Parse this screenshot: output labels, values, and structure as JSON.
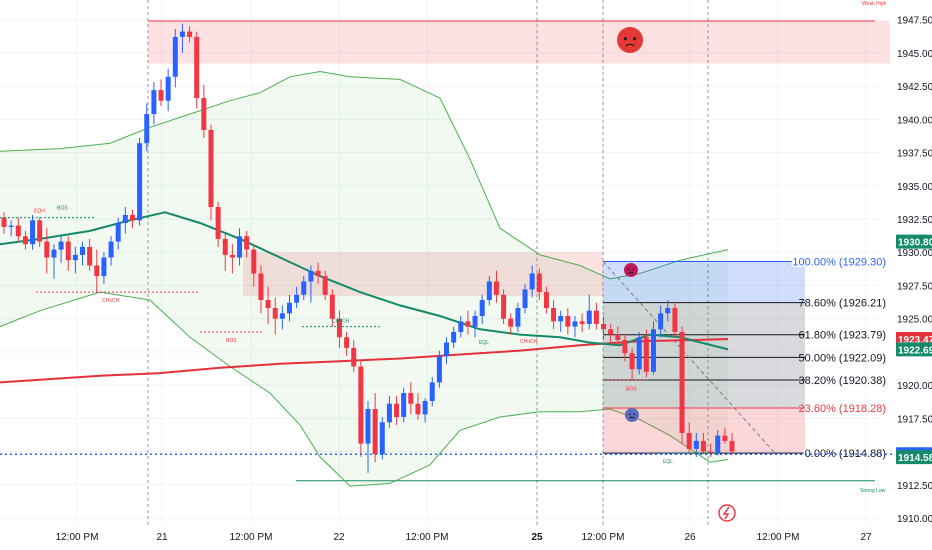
{
  "chart_data": {
    "type": "candlestick",
    "title": "",
    "ylim": [
      1910.0,
      1948.0
    ],
    "y_ticks": [
      "1947.50",
      "1945.00",
      "1942.50",
      "1940.00",
      "1937.50",
      "1935.00",
      "1932.50",
      "1930.00",
      "1927.50",
      "1925.00",
      "1922.50",
      "1920.00",
      "1917.50",
      "1915.00",
      "1912.50",
      "1910.00"
    ],
    "x_ticks": [
      {
        "label": "12:00 PM",
        "bold": false
      },
      {
        "label": "21",
        "bold": false
      },
      {
        "label": "12:00 PM",
        "bold": false
      },
      {
        "label": "22",
        "bold": false
      },
      {
        "label": "12:00 PM",
        "bold": false
      },
      {
        "label": "25",
        "bold": true
      },
      {
        "label": "12:00 PM",
        "bold": false
      },
      {
        "label": "26",
        "bold": false
      },
      {
        "label": "12:00 PM",
        "bold": false
      },
      {
        "label": "27",
        "bold": false
      }
    ],
    "colors": {
      "up": "#2962ff",
      "down": "#f23645",
      "ma_red": "#e5323a",
      "ma_green": "#138a6a",
      "band": "#4caf50"
    },
    "candles": [
      [
        1932.6,
        1933.0,
        1931.4,
        1931.9
      ],
      [
        1931.9,
        1932.4,
        1931.2,
        1932.0
      ],
      [
        1932.0,
        1932.6,
        1930.8,
        1931.2
      ],
      [
        1931.2,
        1931.6,
        1930.2,
        1930.6
      ],
      [
        1930.6,
        1932.8,
        1930.2,
        1932.4
      ],
      [
        1932.4,
        1932.6,
        1930.4,
        1930.8
      ],
      [
        1930.8,
        1931.8,
        1928.4,
        1929.6
      ],
      [
        1929.6,
        1930.6,
        1928.0,
        1930.2
      ],
      [
        1930.2,
        1931.2,
        1929.2,
        1930.8
      ],
      [
        1930.8,
        1931.2,
        1928.6,
        1929.4
      ],
      [
        1929.4,
        1930.4,
        1928.4,
        1929.8
      ],
      [
        1929.8,
        1930.8,
        1929.0,
        1930.4
      ],
      [
        1930.4,
        1931.0,
        1928.6,
        1929.0
      ],
      [
        1929.0,
        1930.2,
        1927.0,
        1928.2
      ],
      [
        1928.2,
        1930.0,
        1927.6,
        1929.6
      ],
      [
        1929.6,
        1931.2,
        1929.0,
        1930.8
      ],
      [
        1930.8,
        1932.6,
        1930.2,
        1932.2
      ],
      [
        1932.2,
        1933.4,
        1931.4,
        1932.8
      ],
      [
        1932.8,
        1933.2,
        1931.8,
        1932.4
      ],
      [
        1932.4,
        1938.6,
        1932.0,
        1938.2
      ],
      [
        1938.2,
        1941.2,
        1937.6,
        1940.4
      ],
      [
        1940.4,
        1942.8,
        1939.6,
        1942.2
      ],
      [
        1942.2,
        1943.0,
        1941.0,
        1941.4
      ],
      [
        1941.4,
        1943.8,
        1940.6,
        1943.2
      ],
      [
        1943.2,
        1946.8,
        1942.4,
        1946.2
      ],
      [
        1946.2,
        1947.2,
        1945.0,
        1946.6
      ],
      [
        1946.6,
        1947.0,
        1945.8,
        1946.2
      ],
      [
        1946.2,
        1946.6,
        1940.8,
        1941.6
      ],
      [
        1941.6,
        1942.6,
        1938.6,
        1939.2
      ],
      [
        1939.2,
        1939.6,
        1932.4,
        1933.4
      ],
      [
        1933.4,
        1933.8,
        1930.4,
        1931.0
      ],
      [
        1931.0,
        1931.4,
        1928.6,
        1929.8
      ],
      [
        1929.8,
        1930.6,
        1928.4,
        1929.6
      ],
      [
        1929.6,
        1931.8,
        1929.0,
        1931.2
      ],
      [
        1931.2,
        1931.6,
        1929.6,
        1930.2
      ],
      [
        1930.2,
        1930.6,
        1927.4,
        1928.4
      ],
      [
        1928.4,
        1929.0,
        1925.4,
        1926.4
      ],
      [
        1926.4,
        1927.4,
        1924.6,
        1925.8
      ],
      [
        1925.8,
        1926.6,
        1923.8,
        1925.0
      ],
      [
        1925.0,
        1926.0,
        1924.2,
        1925.4
      ],
      [
        1925.4,
        1926.8,
        1924.8,
        1926.2
      ],
      [
        1926.2,
        1927.4,
        1925.8,
        1926.8
      ],
      [
        1926.8,
        1928.2,
        1926.4,
        1927.8
      ],
      [
        1927.8,
        1929.0,
        1926.2,
        1928.6
      ],
      [
        1928.6,
        1929.2,
        1927.6,
        1928.2
      ],
      [
        1928.2,
        1928.6,
        1926.4,
        1926.8
      ],
      [
        1926.8,
        1927.2,
        1924.4,
        1925.0
      ],
      [
        1925.0,
        1925.6,
        1922.8,
        1923.6
      ],
      [
        1923.6,
        1924.0,
        1922.2,
        1922.8
      ],
      [
        1922.8,
        1923.4,
        1921.0,
        1921.4
      ],
      [
        1921.4,
        1921.8,
        1914.6,
        1915.6
      ],
      [
        1915.6,
        1918.8,
        1913.4,
        1918.2
      ],
      [
        1918.2,
        1919.4,
        1914.2,
        1914.8
      ],
      [
        1914.8,
        1917.6,
        1914.4,
        1917.2
      ],
      [
        1917.2,
        1919.2,
        1916.8,
        1918.6
      ],
      [
        1918.6,
        1919.2,
        1917.0,
        1917.6
      ],
      [
        1917.6,
        1919.8,
        1917.2,
        1919.4
      ],
      [
        1919.4,
        1920.2,
        1917.8,
        1918.6
      ],
      [
        1918.6,
        1919.4,
        1917.4,
        1917.8
      ],
      [
        1917.8,
        1919.0,
        1917.2,
        1918.8
      ],
      [
        1918.8,
        1920.6,
        1918.4,
        1920.2
      ],
      [
        1920.2,
        1922.6,
        1919.8,
        1922.2
      ],
      [
        1922.2,
        1923.6,
        1921.6,
        1923.2
      ],
      [
        1923.2,
        1924.4,
        1922.8,
        1924.0
      ],
      [
        1924.0,
        1925.2,
        1923.6,
        1924.8
      ],
      [
        1924.8,
        1925.6,
        1923.8,
        1924.4
      ],
      [
        1924.4,
        1925.6,
        1923.6,
        1925.2
      ],
      [
        1925.2,
        1926.8,
        1924.6,
        1926.4
      ],
      [
        1926.4,
        1928.2,
        1926.0,
        1927.8
      ],
      [
        1927.8,
        1928.6,
        1926.2,
        1926.8
      ],
      [
        1926.8,
        1927.2,
        1924.6,
        1925.0
      ],
      [
        1925.0,
        1925.4,
        1923.8,
        1924.4
      ],
      [
        1924.4,
        1926.2,
        1924.0,
        1925.8
      ],
      [
        1925.8,
        1927.6,
        1925.4,
        1927.2
      ],
      [
        1927.2,
        1929.0,
        1926.6,
        1928.4
      ],
      [
        1928.4,
        1928.8,
        1926.4,
        1927.0
      ],
      [
        1927.0,
        1927.4,
        1925.4,
        1925.8
      ],
      [
        1925.8,
        1926.4,
        1924.2,
        1924.8
      ],
      [
        1924.8,
        1925.6,
        1924.0,
        1925.2
      ],
      [
        1925.2,
        1925.8,
        1923.8,
        1924.4
      ],
      [
        1924.4,
        1925.2,
        1923.6,
        1924.8
      ],
      [
        1924.8,
        1925.4,
        1924.0,
        1924.6
      ],
      [
        1924.6,
        1926.8,
        1924.2,
        1925.6
      ],
      [
        1925.6,
        1926.2,
        1924.2,
        1924.6
      ],
      [
        1924.6,
        1925.2,
        1923.4,
        1924.2
      ],
      [
        1924.2,
        1924.6,
        1923.2,
        1923.8
      ],
      [
        1923.8,
        1924.4,
        1923.0,
        1923.4
      ],
      [
        1923.4,
        1923.8,
        1921.8,
        1922.4
      ],
      [
        1922.4,
        1922.8,
        1920.4,
        1921.2
      ],
      [
        1921.2,
        1924.0,
        1920.8,
        1923.6
      ],
      [
        1923.6,
        1924.2,
        1920.6,
        1921.0
      ],
      [
        1921.0,
        1924.8,
        1920.8,
        1924.2
      ],
      [
        1924.2,
        1926.0,
        1923.6,
        1925.4
      ],
      [
        1925.4,
        1926.4,
        1924.8,
        1925.8
      ],
      [
        1925.8,
        1926.2,
        1923.6,
        1924.0
      ],
      [
        1924.0,
        1924.4,
        1915.6,
        1916.4
      ],
      [
        1916.4,
        1917.2,
        1914.8,
        1915.2
      ],
      [
        1915.2,
        1916.4,
        1914.6,
        1915.8
      ],
      [
        1915.8,
        1916.4,
        1914.8,
        1915.0
      ],
      [
        1915.0,
        1915.6,
        1914.6,
        1914.9
      ],
      [
        1914.9,
        1916.6,
        1914.7,
        1916.2
      ],
      [
        1916.2,
        1916.8,
        1915.6,
        1915.8
      ],
      [
        1915.8,
        1916.4,
        1914.8,
        1915.0
      ]
    ],
    "ma_red": [
      [
        0,
        1920.2
      ],
      [
        40,
        1920.4
      ],
      [
        100,
        1920.7
      ],
      [
        160,
        1920.9
      ],
      [
        220,
        1921.3
      ],
      [
        280,
        1921.6
      ],
      [
        340,
        1921.8
      ],
      [
        400,
        1922.0
      ],
      [
        460,
        1922.3
      ],
      [
        520,
        1922.6
      ],
      [
        580,
        1923.0
      ],
      [
        640,
        1923.3
      ],
      [
        700,
        1923.4
      ],
      [
        728,
        1923.47
      ]
    ],
    "ma_green": [
      [
        0,
        1930.6
      ],
      [
        40,
        1931.0
      ],
      [
        90,
        1931.6
      ],
      [
        130,
        1932.4
      ],
      [
        165,
        1933.0
      ],
      [
        200,
        1932.2
      ],
      [
        240,
        1931.0
      ],
      [
        280,
        1929.6
      ],
      [
        320,
        1928.2
      ],
      [
        360,
        1927.0
      ],
      [
        400,
        1926.0
      ],
      [
        440,
        1925.2
      ],
      [
        480,
        1924.2
      ],
      [
        520,
        1923.8
      ],
      [
        560,
        1923.6
      ],
      [
        590,
        1923.2
      ],
      [
        620,
        1923.0
      ],
      [
        650,
        1923.8
      ],
      [
        680,
        1923.6
      ],
      [
        728,
        1922.69
      ]
    ],
    "band_upper": [
      [
        0,
        1937.6
      ],
      [
        60,
        1937.8
      ],
      [
        110,
        1938.2
      ],
      [
        150,
        1939.4
      ],
      [
        190,
        1940.4
      ],
      [
        230,
        1941.4
      ],
      [
        260,
        1942.0
      ],
      [
        290,
        1943.2
      ],
      [
        320,
        1943.6
      ],
      [
        350,
        1943.2
      ],
      [
        400,
        1943.0
      ],
      [
        440,
        1941.6
      ],
      [
        470,
        1937.0
      ],
      [
        500,
        1931.8
      ],
      [
        540,
        1929.8
      ],
      [
        580,
        1929.0
      ],
      [
        610,
        1928.0
      ],
      [
        640,
        1928.4
      ],
      [
        680,
        1929.4
      ],
      [
        728,
        1930.2
      ]
    ],
    "band_lower": [
      [
        0,
        1924.4
      ],
      [
        40,
        1925.6
      ],
      [
        100,
        1927.0
      ],
      [
        150,
        1926.4
      ],
      [
        190,
        1923.6
      ],
      [
        230,
        1921.4
      ],
      [
        270,
        1919.4
      ],
      [
        300,
        1917.0
      ],
      [
        320,
        1914.6
      ],
      [
        350,
        1912.4
      ],
      [
        390,
        1912.6
      ],
      [
        430,
        1914.0
      ],
      [
        460,
        1916.6
      ],
      [
        500,
        1917.6
      ],
      [
        540,
        1918.0
      ],
      [
        580,
        1918.0
      ],
      [
        610,
        1918.2
      ],
      [
        640,
        1917.4
      ],
      [
        670,
        1916.2
      ],
      [
        710,
        1914.2
      ],
      [
        728,
        1914.4
      ]
    ],
    "fib_levels": [
      {
        "label": "100.00% (1929.30)",
        "value": 1929.3,
        "color": "#2962ff"
      },
      {
        "label": "78.60% (1926.21)",
        "value": 1926.21,
        "color": "#131722"
      },
      {
        "label": "61.80% (1923.79)",
        "value": 1923.79,
        "color": "#131722"
      },
      {
        "label": "50.00% (1922.09)",
        "value": 1922.09,
        "color": "#131722"
      },
      {
        "label": "38.20% (1920.38)",
        "value": 1920.38,
        "color": "#131722"
      },
      {
        "label": "23.60% (1918.28)",
        "value": 1918.28,
        "color": "#f23645"
      },
      {
        "label": "0.00% (1914.88)",
        "value": 1914.88,
        "color": "#131722"
      }
    ],
    "price_badges": [
      {
        "label": "1930.80",
        "value": 1930.8,
        "color": "#138a6a"
      },
      {
        "label": "1923.47",
        "value": 1923.47,
        "color": "#e5323a"
      },
      {
        "label": "1922.69",
        "value": 1922.69,
        "color": "#138a6a"
      },
      {
        "label": "1914.80",
        "value": 1914.8,
        "color": "#2962ff"
      },
      {
        "label": "1914.58",
        "value": 1914.58,
        "color": "#138a6a"
      }
    ],
    "zone_labels": {
      "weak_high": "Weak High",
      "strong_low": "Strong Low"
    },
    "structure_labels": {
      "eqh": "EQH",
      "bos": "BOS",
      "choch": "CHoCH",
      "eql": "EQL"
    }
  }
}
